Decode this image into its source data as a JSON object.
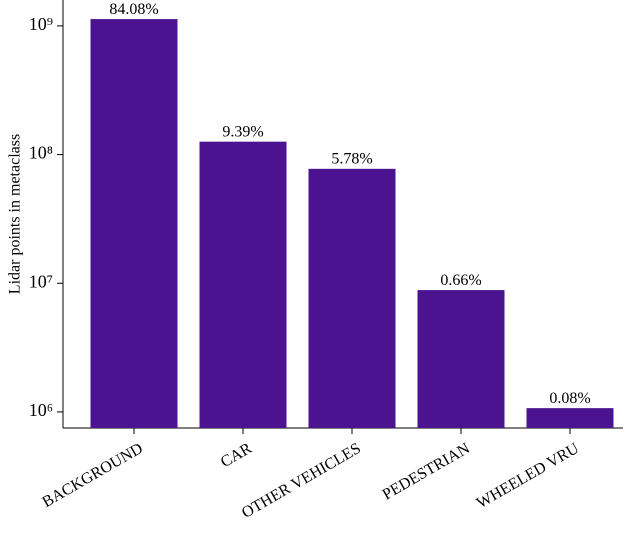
{
  "chart_data": {
    "type": "bar",
    "y_label": "Lidar points in metaclass",
    "categories": [
      "BACKGROUND",
      "CAR",
      "OTHER VEHICLES",
      "PEDESTRIAN",
      "WHEELED VRU"
    ],
    "values": [
      1130000000,
      126000000,
      77500000,
      8850000,
      1070000
    ],
    "percent_labels": [
      "84.08%",
      "9.39%",
      "5.78%",
      "0.66%",
      "0.08%"
    ],
    "color": "#4b1390",
    "log_scale": true,
    "ylim": [
      750000,
      1590000000
    ],
    "yticks": [
      {
        "value": 1000000,
        "label": "10⁶"
      },
      {
        "value": 10000000,
        "label": "10⁷"
      },
      {
        "value": 100000000,
        "label": "10⁸"
      },
      {
        "value": 1000000000,
        "label": "10⁹"
      }
    ],
    "grid": false
  }
}
